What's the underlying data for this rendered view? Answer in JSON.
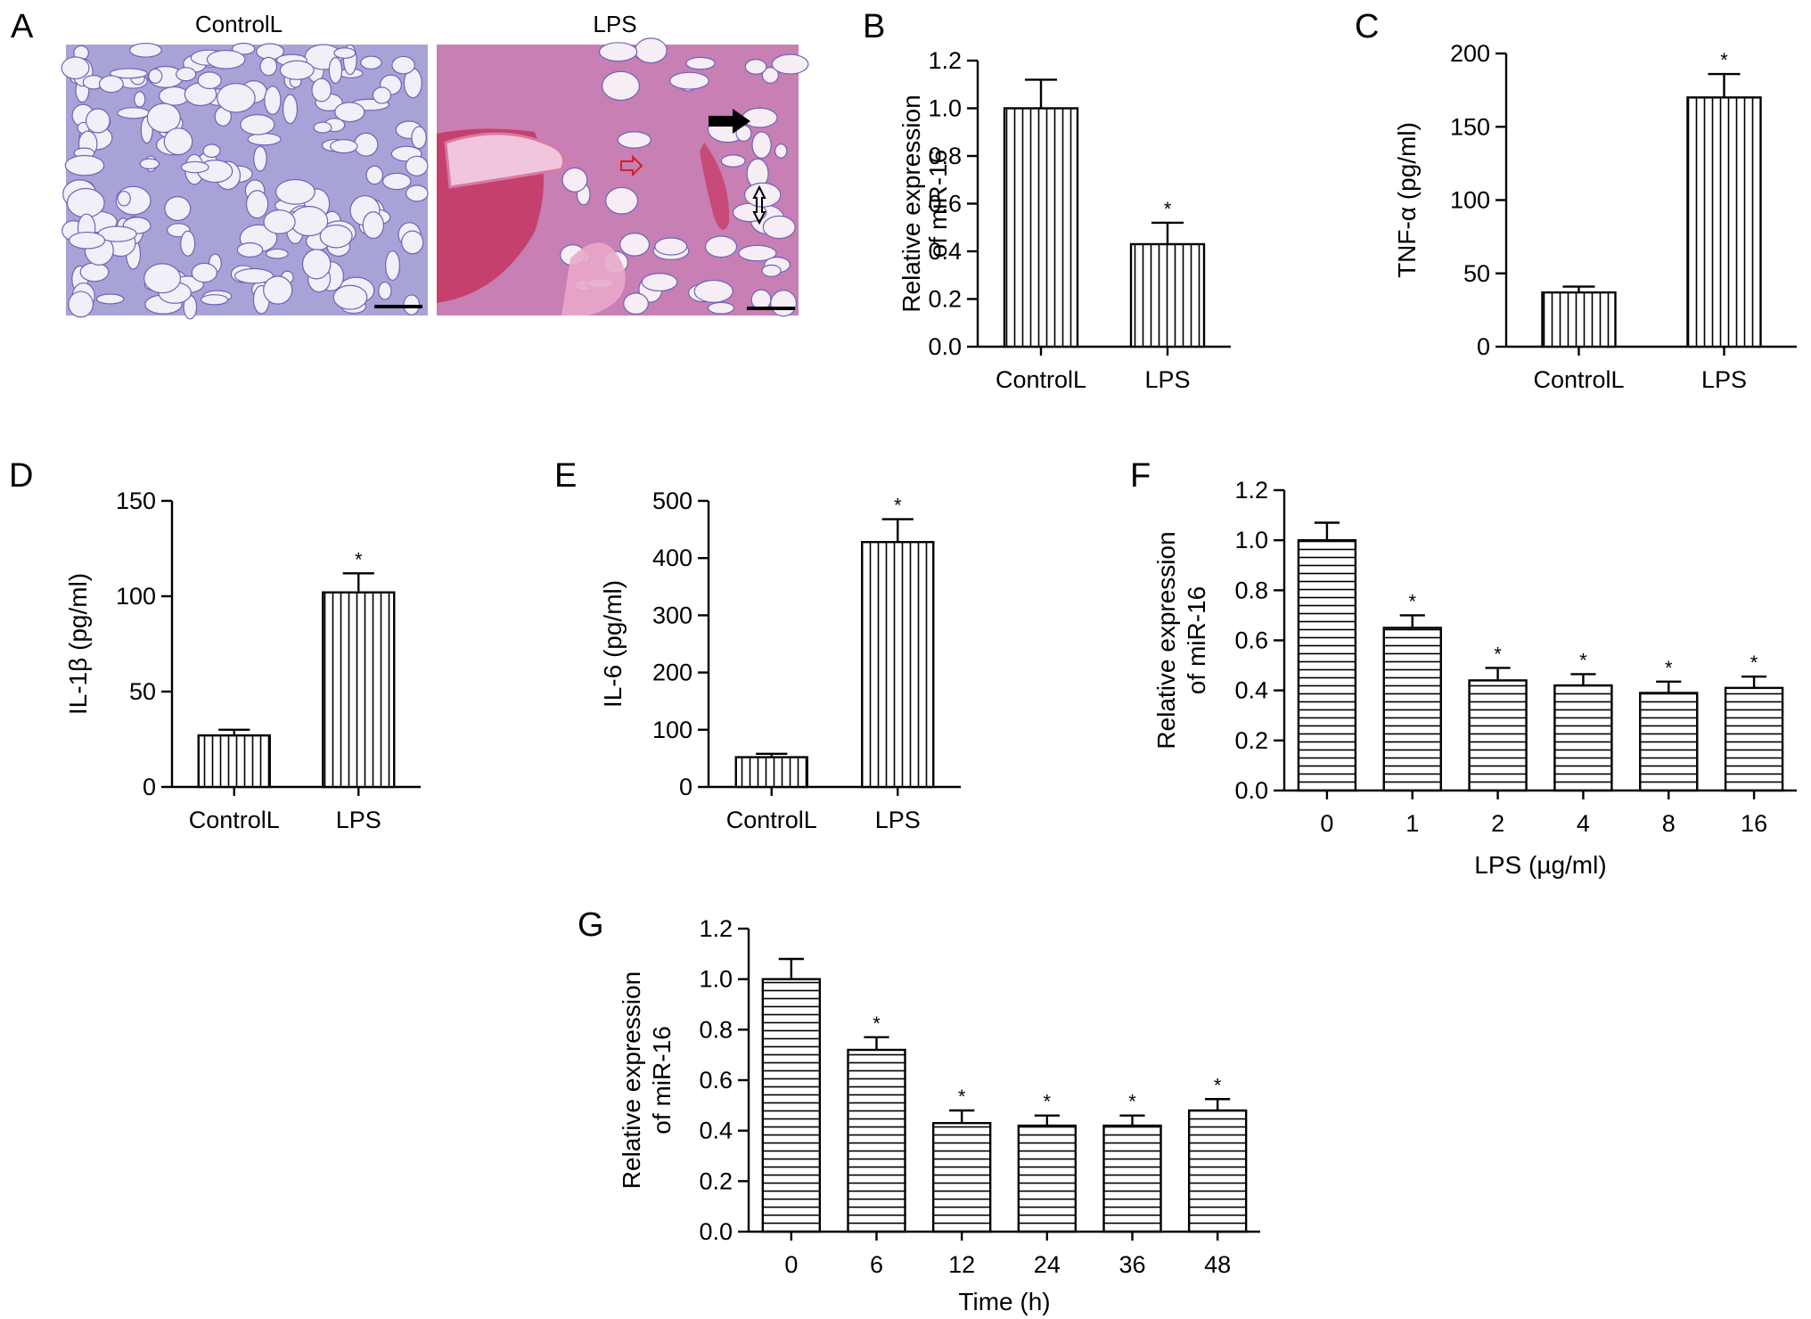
{
  "figure": {
    "histology": {
      "letter": "A",
      "panels": [
        {
          "title": "ControlL"
        },
        {
          "title": "LPS"
        }
      ]
    }
  },
  "chart_data": [
    {
      "id": "B",
      "letter": "B",
      "type": "bar",
      "categories": [
        "ControlL",
        "LPS"
      ],
      "values": [
        1.0,
        0.43
      ],
      "errors": [
        0.12,
        0.09
      ],
      "significant": [
        false,
        true
      ],
      "ylabel": [
        "Relative expression",
        "of miR-16"
      ],
      "xlabel": "",
      "ylim": [
        0,
        1.2
      ],
      "yticks": [
        "0.0",
        "0.2",
        "0.4",
        "0.6",
        "0.8",
        "1.0",
        "1.2"
      ],
      "pattern": "vertical"
    },
    {
      "id": "C",
      "letter": "C",
      "type": "bar",
      "categories": [
        "ControlL",
        "LPS"
      ],
      "values": [
        37,
        170
      ],
      "errors": [
        4,
        16
      ],
      "significant": [
        false,
        true
      ],
      "ylabel": [
        "TNF-α (pg/ml)"
      ],
      "xlabel": "",
      "ylim": [
        0,
        200
      ],
      "yticks": [
        "0",
        "50",
        "100",
        "150",
        "200"
      ],
      "pattern": "vertical"
    },
    {
      "id": "D",
      "letter": "D",
      "type": "bar",
      "categories": [
        "ControlL",
        "LPS"
      ],
      "values": [
        27,
        102
      ],
      "errors": [
        3,
        10
      ],
      "significant": [
        false,
        true
      ],
      "ylabel": [
        "IL-1β (pg/ml)"
      ],
      "xlabel": "",
      "ylim": [
        0,
        150
      ],
      "yticks": [
        "0",
        "50",
        "100",
        "150"
      ],
      "pattern": "vertical"
    },
    {
      "id": "E",
      "letter": "E",
      "type": "bar",
      "categories": [
        "ControlL",
        "LPS"
      ],
      "values": [
        52,
        428
      ],
      "errors": [
        6,
        40
      ],
      "significant": [
        false,
        true
      ],
      "ylabel": [
        "IL-6 (pg/ml)"
      ],
      "xlabel": "",
      "ylim": [
        0,
        500
      ],
      "yticks": [
        "0",
        "100",
        "200",
        "300",
        "400",
        "500"
      ],
      "pattern": "vertical"
    },
    {
      "id": "F",
      "letter": "F",
      "type": "bar",
      "categories": [
        "0",
        "1",
        "2",
        "4",
        "8",
        "16"
      ],
      "values": [
        1.0,
        0.65,
        0.44,
        0.42,
        0.39,
        0.41
      ],
      "errors": [
        0.07,
        0.05,
        0.05,
        0.045,
        0.045,
        0.045
      ],
      "significant": [
        false,
        true,
        true,
        true,
        true,
        true
      ],
      "ylabel": [
        "Relative expression",
        "of miR-16"
      ],
      "xlabel": "LPS (µg/ml)",
      "ylim": [
        0,
        1.2
      ],
      "yticks": [
        "0.0",
        "0.2",
        "0.4",
        "0.6",
        "0.8",
        "1.0",
        "1.2"
      ],
      "pattern": "horizontal"
    },
    {
      "id": "G",
      "letter": "G",
      "type": "bar",
      "categories": [
        "0",
        "6",
        "12",
        "24",
        "36",
        "48"
      ],
      "values": [
        1.0,
        0.72,
        0.43,
        0.42,
        0.42,
        0.48
      ],
      "errors": [
        0.08,
        0.05,
        0.05,
        0.04,
        0.04,
        0.045
      ],
      "significant": [
        false,
        true,
        true,
        true,
        true,
        true
      ],
      "ylabel": [
        "Relative expression",
        "of miR-16"
      ],
      "xlabel": "Time (h)",
      "ylim": [
        0,
        1.2
      ],
      "yticks": [
        "0.0",
        "0.2",
        "0.4",
        "0.6",
        "0.8",
        "1.0",
        "1.2"
      ],
      "pattern": "horizontal"
    }
  ]
}
